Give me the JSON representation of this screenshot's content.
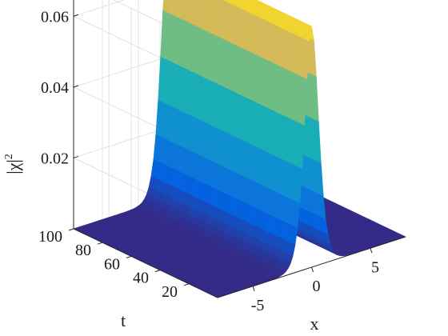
{
  "chart_data": {
    "type": "surface",
    "title": "",
    "xlabel": "x",
    "ylabel": "t",
    "zlabel": "|χ|",
    "zlabel_superscript": "2",
    "x_ticks": [
      "-5",
      "0",
      "5"
    ],
    "t_ticks": [
      "20",
      "40",
      "60",
      "80",
      "100"
    ],
    "z_ticks": [
      "0.02",
      "0.04",
      "0.06"
    ],
    "xlim": [
      -8,
      8
    ],
    "tlim": [
      0,
      100
    ],
    "zlim": [
      0,
      0.07
    ],
    "peak_value": 0.068,
    "peak_x_center": 0,
    "colormap": "parula",
    "grid": true,
    "box": false
  }
}
